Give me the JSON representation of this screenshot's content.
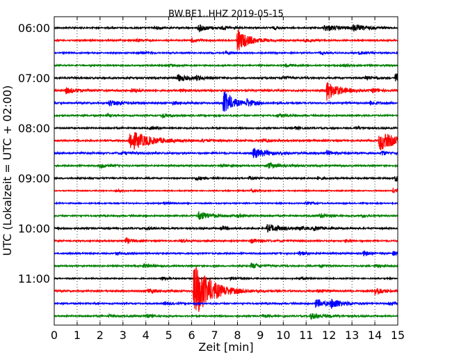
{
  "chart_data": {
    "type": "line",
    "title": "BW.BE1..HHZ 2019-05-15",
    "xlabel": "Zeit  [min]",
    "ylabel": "UTC (Lokalzeit = UTC + 02:00)",
    "xlim": [
      0,
      15
    ],
    "x_ticks": [
      "0",
      "1",
      "2",
      "3",
      "4",
      "5",
      "6",
      "7",
      "8",
      "9",
      "10",
      "11",
      "12",
      "13",
      "14",
      "15"
    ],
    "grid": "vertical dotted at every minute",
    "line_interval_min": 15,
    "colors": [
      "#000000",
      "#ff0000",
      "#0000ff",
      "#008000"
    ],
    "hour_labels": [
      {
        "label": "06:00",
        "line_index": 0
      },
      {
        "label": "07:00",
        "line_index": 4
      },
      {
        "label": "08:00",
        "line_index": 8
      },
      {
        "label": "09:00",
        "line_index": 12
      },
      {
        "label": "10:00",
        "line_index": 16
      },
      {
        "label": "11:00",
        "line_index": 20
      }
    ],
    "series": [
      {
        "start": "06:00",
        "color": "#000000",
        "noise": 1.0,
        "events": [
          [
            6.3,
            5,
            0.4
          ],
          [
            11.8,
            4,
            0.8
          ],
          [
            13.0,
            4,
            0.6
          ],
          [
            4.4,
            2,
            0.3
          ],
          [
            7.3,
            2,
            0.3
          ],
          [
            9.6,
            2,
            0.3
          ]
        ]
      },
      {
        "start": "06:15",
        "color": "#ff0000",
        "noise": 1.0,
        "events": [
          [
            8.0,
            16,
            0.5
          ],
          [
            6.0,
            3,
            0.3
          ],
          [
            10.9,
            2,
            0.3
          ],
          [
            3.6,
            2,
            0.3
          ]
        ]
      },
      {
        "start": "06:30",
        "color": "#0000ff",
        "noise": 0.9,
        "events": [
          [
            3.8,
            2,
            0.3
          ],
          [
            7.5,
            2,
            0.3
          ],
          [
            11.6,
            2,
            0.3
          ],
          [
            13.3,
            2,
            0.3
          ]
        ]
      },
      {
        "start": "06:45",
        "color": "#008000",
        "noise": 0.9,
        "events": [
          [
            5.0,
            2,
            0.3
          ],
          [
            10.1,
            2,
            0.4
          ],
          [
            12.6,
            2,
            0.3
          ]
        ]
      },
      {
        "start": "07:00",
        "color": "#000000",
        "noise": 1.2,
        "events": [
          [
            5.4,
            5,
            0.4
          ],
          [
            14.9,
            7,
            0.3
          ],
          [
            6.2,
            3,
            0.3
          ],
          [
            10.0,
            2,
            0.3
          ],
          [
            13.6,
            3,
            0.3
          ]
        ]
      },
      {
        "start": "07:15",
        "color": "#ff0000",
        "noise": 1.2,
        "events": [
          [
            0.5,
            4,
            0.5
          ],
          [
            11.9,
            14,
            0.5
          ],
          [
            3.4,
            3,
            0.3
          ],
          [
            5.5,
            2,
            0.3
          ],
          [
            13.9,
            3,
            0.3
          ]
        ]
      },
      {
        "start": "07:30",
        "color": "#0000ff",
        "noise": 1.1,
        "events": [
          [
            2.4,
            4,
            0.6
          ],
          [
            7.4,
            18,
            0.4
          ],
          [
            8.4,
            5,
            0.3
          ],
          [
            13.8,
            3,
            0.3
          ],
          [
            5.2,
            2,
            0.3
          ]
        ]
      },
      {
        "start": "07:45",
        "color": "#008000",
        "noise": 1.0,
        "events": [
          [
            4.7,
            3,
            0.3
          ],
          [
            9.7,
            2,
            0.4
          ],
          [
            2.3,
            2,
            0.3
          ]
        ]
      },
      {
        "start": "08:00",
        "color": "#000000",
        "noise": 1.0,
        "events": [
          [
            4.2,
            2,
            0.3
          ],
          [
            10.5,
            2,
            0.3
          ],
          [
            13.2,
            2,
            0.3
          ]
        ]
      },
      {
        "start": "08:15",
        "color": "#ff0000",
        "noise": 1.2,
        "events": [
          [
            3.3,
            15,
            0.8
          ],
          [
            14.2,
            14,
            0.7
          ],
          [
            9.1,
            2,
            0.3
          ],
          [
            6.4,
            2,
            0.3
          ]
        ]
      },
      {
        "start": "08:30",
        "color": "#0000ff",
        "noise": 1.2,
        "events": [
          [
            8.7,
            7,
            0.6
          ],
          [
            11.9,
            3,
            0.3
          ],
          [
            14.3,
            3,
            0.3
          ],
          [
            2.9,
            2,
            0.3
          ]
        ]
      },
      {
        "start": "08:45",
        "color": "#008000",
        "noise": 1.0,
        "events": [
          [
            2.0,
            3,
            0.4
          ],
          [
            9.3,
            4,
            0.6
          ],
          [
            7.3,
            2,
            0.3
          ]
        ]
      },
      {
        "start": "09:00",
        "color": "#000000",
        "noise": 1.0,
        "events": [
          [
            6.2,
            3,
            0.3
          ],
          [
            14.9,
            5,
            0.2
          ],
          [
            11.5,
            2,
            0.3
          ],
          [
            8.5,
            2,
            0.3
          ]
        ]
      },
      {
        "start": "09:15",
        "color": "#ff0000",
        "noise": 0.7,
        "events": [
          [
            14.8,
            4,
            0.2
          ],
          [
            2.7,
            2,
            0.3
          ],
          [
            8.6,
            2,
            0.3
          ]
        ]
      },
      {
        "start": "09:30",
        "color": "#0000ff",
        "noise": 0.8,
        "events": [
          [
            4.8,
            2,
            0.3
          ],
          [
            11.0,
            2,
            0.3
          ]
        ]
      },
      {
        "start": "09:45",
        "color": "#008000",
        "noise": 1.0,
        "events": [
          [
            6.3,
            6,
            0.6
          ],
          [
            11.6,
            3,
            0.4
          ],
          [
            8.0,
            2,
            0.3
          ],
          [
            13.4,
            2,
            0.3
          ]
        ]
      },
      {
        "start": "10:00",
        "color": "#000000",
        "noise": 1.1,
        "events": [
          [
            9.3,
            5,
            0.7
          ],
          [
            7.3,
            3,
            0.3
          ],
          [
            11.3,
            3,
            0.3
          ],
          [
            10.7,
            2,
            0.3
          ],
          [
            4.0,
            2,
            0.3
          ]
        ]
      },
      {
        "start": "10:15",
        "color": "#ff0000",
        "noise": 1.0,
        "events": [
          [
            3.1,
            4,
            0.3
          ],
          [
            8.6,
            3,
            0.5
          ],
          [
            12.7,
            2,
            0.3
          ],
          [
            5.5,
            2,
            0.3
          ]
        ]
      },
      {
        "start": "10:30",
        "color": "#0000ff",
        "noise": 1.0,
        "events": [
          [
            2.7,
            2,
            0.3
          ],
          [
            10.7,
            3,
            0.3
          ],
          [
            13.5,
            3,
            0.3
          ],
          [
            14.8,
            3,
            0.2
          ]
        ]
      },
      {
        "start": "10:45",
        "color": "#008000",
        "noise": 1.0,
        "events": [
          [
            3.9,
            3,
            0.3
          ],
          [
            8.6,
            4,
            0.4
          ],
          [
            11.6,
            2,
            0.3
          ],
          [
            14.0,
            2,
            0.3
          ]
        ]
      },
      {
        "start": "11:00",
        "color": "#000000",
        "noise": 0.8,
        "events": [
          [
            4.7,
            3,
            0.2
          ],
          [
            7.7,
            2,
            0.3
          ],
          [
            10.7,
            2,
            0.3
          ]
        ]
      },
      {
        "start": "11:15",
        "color": "#ff0000",
        "noise": 1.1,
        "events": [
          [
            6.1,
            42,
            0.7
          ],
          [
            4.1,
            3,
            0.4
          ],
          [
            14.0,
            7,
            0.3
          ],
          [
            11.5,
            2,
            0.3
          ]
        ]
      },
      {
        "start": "11:30",
        "color": "#0000ff",
        "noise": 1.0,
        "events": [
          [
            11.4,
            6,
            0.5
          ],
          [
            12.1,
            6,
            0.5
          ],
          [
            14.6,
            2,
            0.3
          ],
          [
            4.8,
            2,
            0.3
          ]
        ]
      },
      {
        "start": "11:45",
        "color": "#008000",
        "noise": 1.0,
        "events": [
          [
            4.0,
            3,
            0.3
          ],
          [
            11.2,
            4,
            0.6
          ],
          [
            9.1,
            2,
            0.3
          ],
          [
            2.4,
            2,
            0.3
          ]
        ]
      }
    ]
  }
}
